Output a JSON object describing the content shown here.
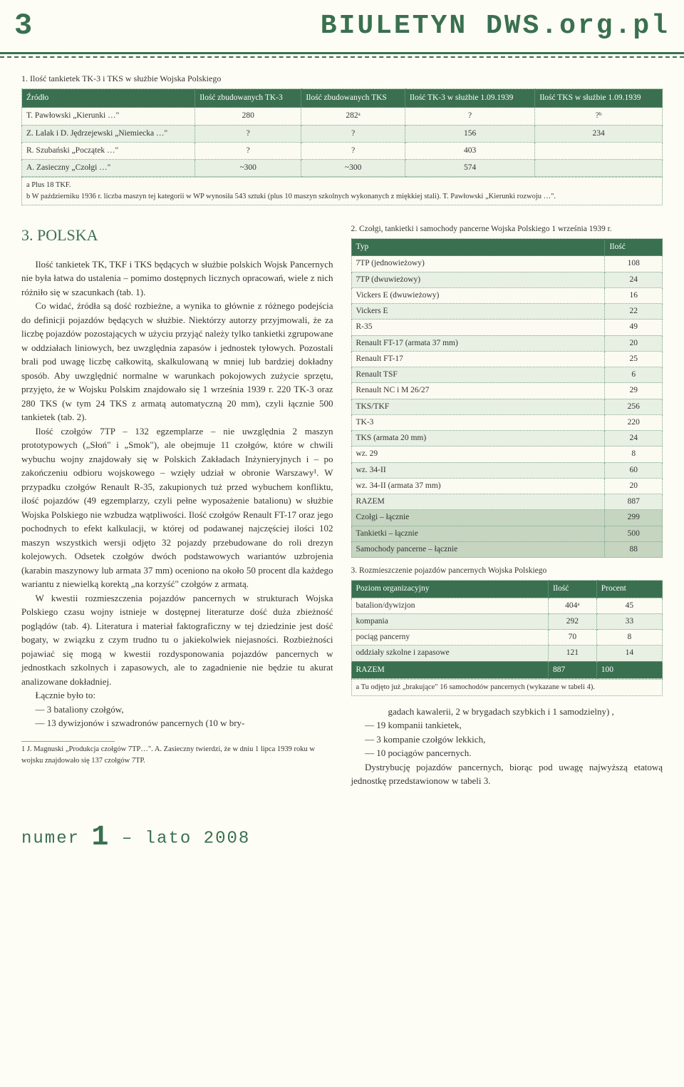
{
  "header": {
    "page_number": "3",
    "site_title": "BIULETYN DWS.org.pl"
  },
  "table1": {
    "caption": "1. Ilość tankietek TK-3 i TKS w służbie Wojska Polskiego",
    "headers": [
      "Źródło",
      "Ilość zbudowanych TK-3",
      "Ilość zbudowanych TKS",
      "Ilość TK-3 w służbie 1.09.1939",
      "Ilość TKS w służbie 1.09.1939"
    ],
    "rows": [
      [
        "T. Pawłowski „Kierunki …\"",
        "280",
        "282ᵃ",
        "?",
        "?ᵇ"
      ],
      [
        "Z. Lalak i D. Jędrzejewski „Niemiecka …\"",
        "?",
        "?",
        "156",
        "234"
      ],
      [
        "R. Szubański „Początek …\"",
        "?",
        "?",
        "403",
        ""
      ],
      [
        "A. Zasieczny „Czołgi …\"",
        "~300",
        "~300",
        "574",
        ""
      ]
    ],
    "footnote": "a  Plus 18 TKF.\nb  W październiku 1936 r. liczba maszyn tej kategorii w WP wynosiła 543 sztuki (plus 10 maszyn szkolnych wykonanych z miękkiej stali). T. Pawłowski „Kierunki rozwoju …\"."
  },
  "section": {
    "title": "3.  POLSKA",
    "p1": "Ilość tankietek TK, TKF i TKS będących w służbie polskich Wojsk Pancernych nie była łatwa do ustalenia – pomimo dostępnych licznych opracowań, wiele z nich różniło się w szacunkach (tab. 1).",
    "p2": "Co widać, źródła są dość rozbieżne, a wynika to głównie z różnego podejścia do definicji pojazdów będących w służbie. Niektórzy autorzy przyjmowali, że za liczbę pojazdów pozostających w użyciu przyjąć należy tylko tankietki zgrupowane w oddziałach liniowych, bez uwzględnia zapasów i jednostek tyłowych. Pozostali brali pod uwagę liczbę całkowitą, skalkulowaną w mniej lub bardziej dokładny sposób. Aby uwzględnić normalne w warunkach pokojowych zużycie sprzętu, przyjęto, że w Wojsku Polskim znajdowało się 1 września 1939 r. 220 TK-3 oraz 280 TKS (w tym 24 TKS z armatą automatyczną 20 mm), czyli łącznie 500 tankietek (tab. 2).",
    "p3": "Ilość czołgów 7TP – 132 egzemplarze – nie uwzględnia 2 maszyn prototypowych („Słoń\" i „Smok\"), ale obejmuje 11 czołgów, które w chwili wybuchu wojny znajdowały się w Polskich Zakładach Inżynieryjnych i – po zakończeniu odbioru wojskowego – wzięły udział w obronie Warszawy¹. W przypadku czołgów Renault R-35, zakupionych tuż przed wybuchem konfliktu, ilość pojazdów (49 egzemplarzy, czyli pełne wyposażenie batalionu) w służbie Wojska Polskiego nie wzbudza wątpliwości. Ilość czołgów Renault FT-17 oraz jego pochodnych to efekt kalkulacji, w której od podawanej najczęściej ilości 102 maszyn wszystkich wersji odjęto 32 pojazdy przebudowane do roli drezyn kolejowych. Odsetek czołgów dwóch podstawowych wariantów uzbrojenia (karabin maszynowy lub armata 37 mm) oceniono na około 50 procent dla każdego wariantu z niewielką korektą „na korzyść\" czołgów z armatą.",
    "p4": "W kwestii rozmieszczenia pojazdów pancernych w strukturach Wojska Polskiego czasu wojny istnieje w dostępnej literaturze dość duża zbieżność poglądów (tab. 4). Literatura i materiał faktograficzny w tej dziedzinie jest dość bogaty, w związku z czym trudno tu o jakiekolwiek niejasności. Rozbieżności pojawiać się mogą w kwestii rozdysponowania pojazdów pancernych w jednostkach szkolnych i zapasowych, ale to zagadnienie nie będzie tu akurat analizowane dokładniej.",
    "p5": "Łącznie było to:",
    "li1": "—    3 bataliony czołgów,",
    "li2": "—    13 dywizjonów i szwadronów pancernych (10 w bry-",
    "cont1": "gadach kawalerii, 2 w brygadach szybkich i 1 samodzielny) ,",
    "li3": "—    19 kompanii tankietek,",
    "li4": "—    3 kompanie czołgów lekkich,",
    "li5": "—    10 pociągów pancernych.",
    "p6": "Dystrybucję pojazdów pancernych, biorąc pod uwagę najwyższą etatową jednostkę przedstawionow w tabeli 3."
  },
  "table2": {
    "caption": "2. Czołgi, tankietki i samochody pancerne Wojska Polskiego 1 września 1939 r.",
    "headers": [
      "Typ",
      "Ilość"
    ],
    "rows": [
      [
        "7TP (jednowieżowy)",
        "108"
      ],
      [
        "7TP (dwuwieżowy)",
        "24"
      ],
      [
        "Vickers E (dwuwieżowy)",
        "16"
      ],
      [
        "Vickers E",
        "22"
      ],
      [
        "R-35",
        "49"
      ],
      [
        "Renault FT-17 (armata 37 mm)",
        "20"
      ],
      [
        "Renault FT-17",
        "25"
      ],
      [
        "Renault TSF",
        "6"
      ],
      [
        "Renault NC i M 26/27",
        "29"
      ],
      [
        "TKS/TKF",
        "256"
      ],
      [
        "TK-3",
        "220"
      ],
      [
        "TKS (armata 20 mm)",
        "24"
      ],
      [
        "wz. 29",
        "8"
      ],
      [
        "wz. 34-II",
        "60"
      ],
      [
        "wz. 34-II (armata 37 mm)",
        "20"
      ],
      [
        "RAZEM",
        "887"
      ]
    ],
    "subtotals": [
      [
        "Czołgi – łącznie",
        "299"
      ],
      [
        "Tankietki – łącznie",
        "500"
      ],
      [
        "Samochody pancerne – łącznie",
        "88"
      ]
    ]
  },
  "table3": {
    "caption": "3. Rozmieszczenie pojazdów pancernych Wojska Polskiego",
    "headers": [
      "Poziom organizacyjny",
      "Ilość",
      "Procent"
    ],
    "rows": [
      [
        "batalion/dywizjon",
        "404ᵃ",
        "45"
      ],
      [
        "kompania",
        "292",
        "33"
      ],
      [
        "pociąg pancerny",
        "70",
        "8"
      ],
      [
        "oddziały szkolne i zapasowe",
        "121",
        "14"
      ]
    ],
    "total": [
      "RAZEM",
      "887",
      "100"
    ],
    "footnote": "a  Tu odjęto już „brakujące\" 16 samochodów pancernych (wykazane w tabeli 4)."
  },
  "footnote": {
    "text": "1  J. Magnuski „Produkcja czołgów 7TP…\". A. Zasieczny twierdzi, że w dniu 1 lipca 1939 roku w wojsku znajdowało się 137 czołgów 7TP."
  },
  "footer": {
    "label_numer": "numer",
    "issue": "1",
    "season": "– lato 2008"
  }
}
